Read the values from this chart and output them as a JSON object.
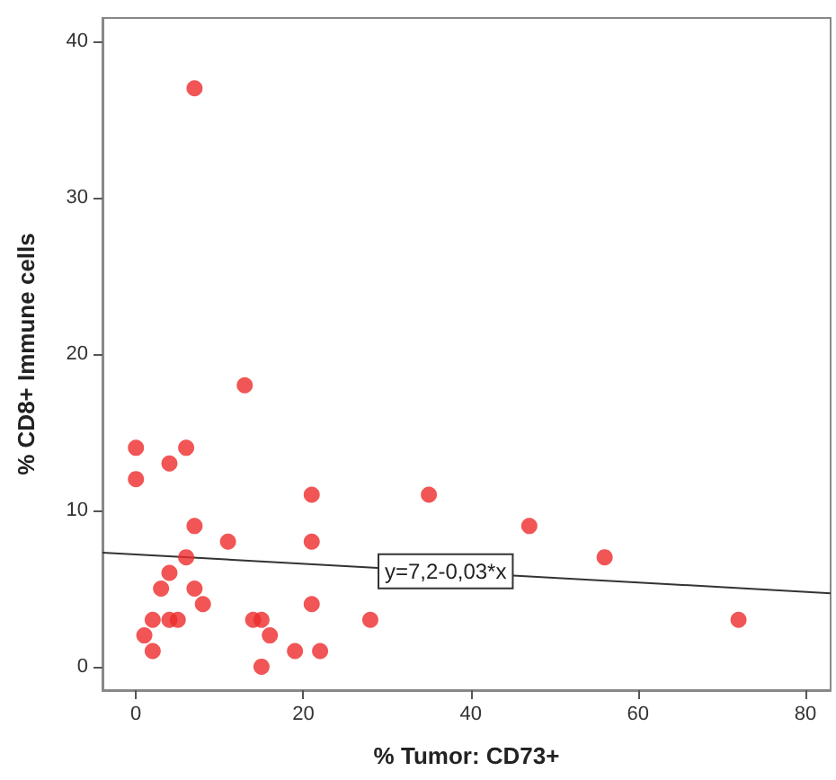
{
  "chart_data": {
    "type": "scatter",
    "xlabel": "% Tumor: CD73+",
    "ylabel": "% CD8+ Immune cells",
    "x": [
      0,
      0,
      1,
      2,
      2,
      3,
      4,
      4,
      4,
      5,
      6,
      6,
      7,
      7,
      8,
      7,
      11,
      13,
      14,
      15,
      15,
      16,
      19,
      21,
      21,
      21,
      22,
      28,
      35,
      47,
      56,
      72
    ],
    "series": [
      {
        "color": "#ee2a2a",
        "marker": "circle",
        "values": [
          14,
          12,
          2,
          1,
          3,
          5,
          13,
          6,
          3,
          3,
          14,
          7,
          9,
          5,
          4,
          37,
          8,
          18,
          3,
          3,
          0,
          2,
          1,
          11,
          8,
          4,
          1,
          3,
          11,
          9,
          7,
          3
        ]
      },
      {
        "type": "line",
        "color": "#333333",
        "marker": "none",
        "x": [
          -4,
          83
        ],
        "values": [
          7.3,
          4.7
        ]
      }
    ],
    "annotations": [
      {
        "text": "y=7,2-0,03*x",
        "x": 37,
        "y": 6.1
      }
    ],
    "xlim": [
      -4,
      83
    ],
    "xticks": [
      0,
      20,
      40,
      60,
      80
    ],
    "ylim": [
      -1.5,
      41.5
    ],
    "yticks": [
      0,
      10,
      20,
      30,
      40
    ],
    "grid": false
  }
}
